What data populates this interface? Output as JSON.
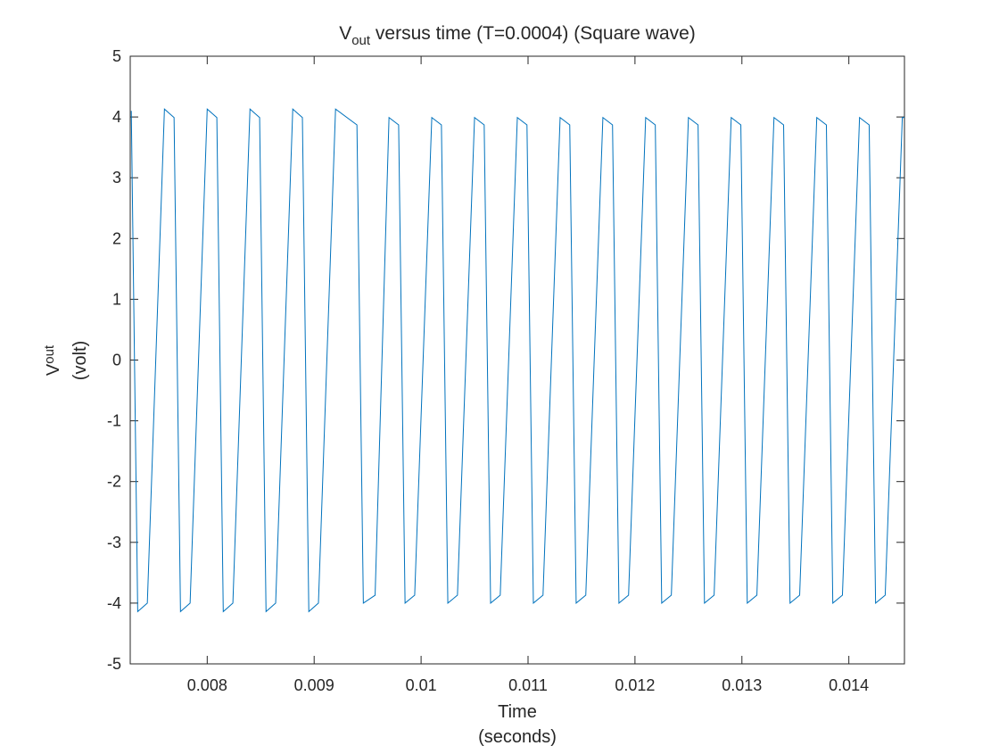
{
  "chart_data": {
    "type": "line",
    "title": {
      "main": "V",
      "sub": "out",
      "rest": " versus time (T=0.0004) (Square wave)"
    },
    "xlabel": {
      "line1": "Time",
      "line2": "(seconds)"
    },
    "ylabel": {
      "main": "V",
      "sub": "out",
      "line2": "(volt)"
    },
    "xlim": [
      0.00728,
      0.01452
    ],
    "ylim": [
      -5,
      5
    ],
    "xticks": [
      0.008,
      0.009,
      0.01,
      0.011,
      0.012,
      0.013,
      0.014
    ],
    "xtick_labels": [
      "0.008",
      "0.009",
      "0.01",
      "0.011",
      "0.012",
      "0.013",
      "0.014"
    ],
    "yticks": [
      -5,
      -4,
      -3,
      -2,
      -1,
      0,
      1,
      2,
      3,
      4,
      5
    ],
    "ytick_labels": [
      "-5",
      "-4",
      "-3",
      "-2",
      "-1",
      "0",
      "1",
      "2",
      "3",
      "4",
      "5"
    ],
    "grid": false,
    "line_color": "#0072BD",
    "series": [
      {
        "x": [
          0.00729,
          0.00735,
          0.00744,
          0.0076,
          0.00769,
          0.00775,
          0.00784,
          0.008,
          0.00809,
          0.00815,
          0.00824,
          0.0084,
          0.00849,
          0.00855,
          0.00864,
          0.0088,
          0.00889,
          0.00895,
          0.00904,
          0.0092,
          0.0094,
          0.00946,
          0.00957,
          0.0097,
          0.00979,
          0.00985,
          0.00994,
          0.0101,
          0.01019,
          0.01025,
          0.01034,
          0.0105,
          0.01059,
          0.01065,
          0.01074,
          0.0109,
          0.01099,
          0.01105,
          0.01114,
          0.0113,
          0.01139,
          0.01145,
          0.01154,
          0.0117,
          0.01179,
          0.01185,
          0.01194,
          0.0121,
          0.01219,
          0.01225,
          0.01234,
          0.0125,
          0.01259,
          0.01265,
          0.01274,
          0.0129,
          0.01299,
          0.01305,
          0.01314,
          0.0133,
          0.01339,
          0.01345,
          0.01354,
          0.0137,
          0.01379,
          0.01385,
          0.01394,
          0.0141,
          0.01419,
          0.01425,
          0.01434,
          0.0145,
          0.01452
        ],
        "y": [
          4.1,
          -4.14,
          -4.0,
          4.13,
          3.99,
          -4.14,
          -4.0,
          4.13,
          3.99,
          -4.14,
          -4.0,
          4.13,
          3.99,
          -4.14,
          -4.0,
          4.13,
          3.99,
          -4.14,
          -4.0,
          4.13,
          3.87,
          -4.0,
          -3.87,
          3.99,
          3.87,
          -4.0,
          -3.87,
          3.99,
          3.87,
          -4.0,
          -3.87,
          3.99,
          3.87,
          -4.0,
          -3.87,
          3.99,
          3.87,
          -4.0,
          -3.87,
          3.99,
          3.87,
          -4.0,
          -3.87,
          3.99,
          3.87,
          -4.0,
          -3.87,
          3.99,
          3.87,
          -4.0,
          -3.87,
          3.99,
          3.87,
          -4.0,
          -3.87,
          3.99,
          3.87,
          -4.0,
          -3.87,
          3.99,
          3.87,
          -4.0,
          -3.87,
          3.99,
          3.87,
          -4.0,
          -3.87,
          3.99,
          3.87,
          -4.0,
          -3.87,
          3.99,
          3.99
        ]
      }
    ]
  }
}
